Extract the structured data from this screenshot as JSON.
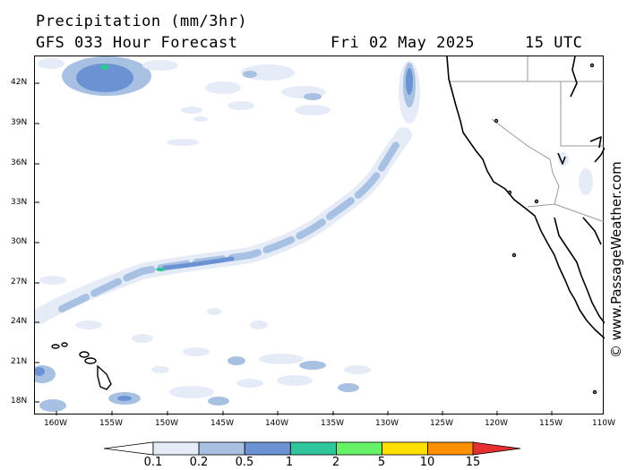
{
  "header": {
    "title": "Precipitation (mm/3hr)",
    "subtitle": "GFS 033 Hour Forecast",
    "forecast_date": "Fri 02 May 2025",
    "forecast_time": "15 UTC"
  },
  "map": {
    "lat_labels": [
      "42N",
      "39N",
      "36N",
      "33N",
      "30N",
      "27N",
      "24N",
      "21N",
      "18N"
    ],
    "lon_labels": [
      "160W",
      "155W",
      "150W",
      "145W",
      "140W",
      "135W",
      "130W",
      "125W",
      "120W",
      "115W",
      "110W"
    ],
    "land_color": "#ffffff",
    "ocean_color": "#ffffff"
  },
  "colorbar": {
    "labels": [
      "0.1",
      "0.2",
      "0.5",
      "1",
      "2",
      "5",
      "10",
      "15"
    ],
    "colors": [
      "#ffffff",
      "#e6ecf7",
      "#a8c1e3",
      "#6b93d3",
      "#2fc69b",
      "#66f266",
      "#ffe000",
      "#ff9100",
      "#e63030"
    ]
  },
  "watermark": "© www.PassageWeather.com"
}
